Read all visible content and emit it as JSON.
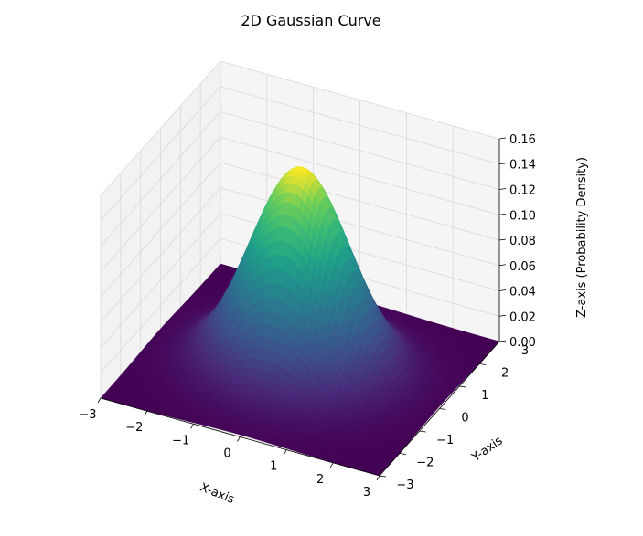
{
  "chart_data": {
    "type": "surface",
    "title": "2D Gaussian Curve",
    "xlabel": "X-axis",
    "ylabel": "Y-axis",
    "zlabel": "Z-axis (Probability Density)",
    "function": "z = exp(-(x^2 + y^2) / 2) / (2*pi)",
    "xlim": [
      -3,
      3
    ],
    "ylim": [
      -3,
      3
    ],
    "zlim": [
      0,
      0.16
    ],
    "x_ticks": [
      -3,
      -2,
      -1,
      0,
      1,
      2,
      3
    ],
    "y_ticks": [
      -3,
      -2,
      -1,
      0,
      1,
      2,
      3
    ],
    "z_ticks": [
      "0.00",
      "0.02",
      "0.04",
      "0.06",
      "0.08",
      "0.10",
      "0.12",
      "0.14",
      "0.16"
    ],
    "x_tick_labels": [
      "−3",
      "−2",
      "−1",
      "0",
      "1",
      "2",
      "3"
    ],
    "y_tick_labels": [
      "−3",
      "−2",
      "−1",
      "0",
      "1",
      "2",
      "3"
    ],
    "peak_value": 0.159,
    "colormap": "viridis",
    "grid": true,
    "pane_color": "#f2f2f2"
  }
}
